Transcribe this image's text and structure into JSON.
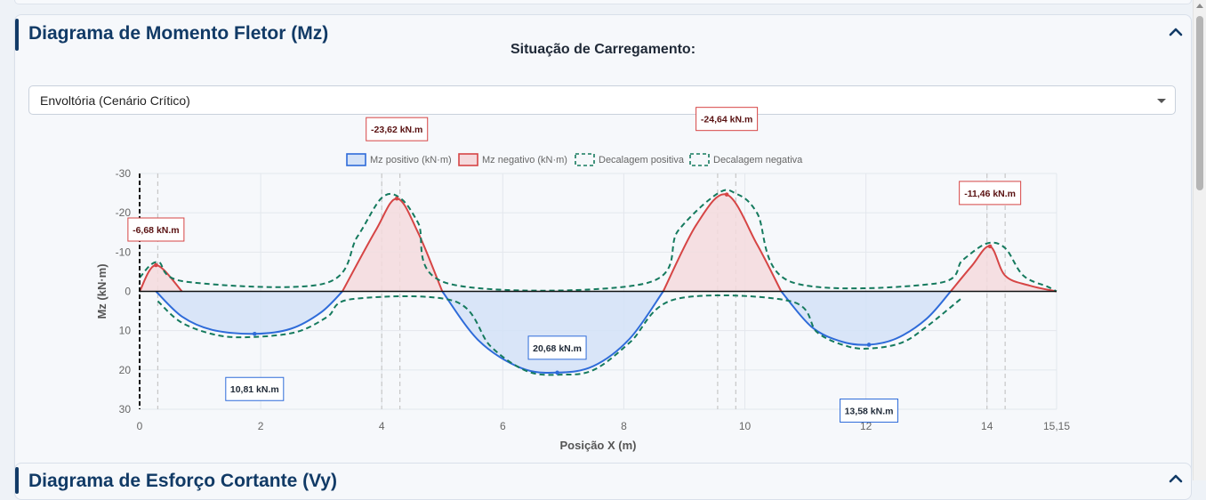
{
  "panel": {
    "title": "Diagrama de Momento Fletor (Mz)",
    "selector_label": "Situação de Carregamento:",
    "selected_option": "Envoltória (Cenário Crítico)"
  },
  "next_panel": {
    "title": "Diagrama de Esforço Cortante (Vy)"
  },
  "colors": {
    "positive_line": "#2e6bd9",
    "positive_fill": "#d4e2f7",
    "negative_line": "#d64545",
    "negative_fill": "#f5dadd",
    "decalagem": "#157a5e",
    "title": "#113a66"
  },
  "chart_data": {
    "type": "area",
    "xlabel": "Posição X (m)",
    "ylabel": "Mz (kN·m)",
    "xlim": [
      0,
      15.15
    ],
    "ylim": [
      -30,
      30
    ],
    "y_inverted": true,
    "x_ticks": [
      "0",
      "2",
      "4",
      "6",
      "8",
      "10",
      "12",
      "14",
      "15,15"
    ],
    "x_tick_values": [
      0,
      2,
      4,
      6,
      8,
      10,
      12,
      14,
      15.15
    ],
    "y_ticks": [
      "-30",
      "-20",
      "-10",
      "0",
      "10",
      "20",
      "30"
    ],
    "y_tick_values": [
      -30,
      -20,
      -10,
      0,
      10,
      20,
      30
    ],
    "legend": [
      "Mz positivo (kN·m)",
      "Mz negativo (kN·m)",
      "Decalagem positiva",
      "Decalagem negativa"
    ],
    "support_lines_x": [
      0.3,
      4.0,
      4.3,
      9.55,
      9.85,
      14.0,
      14.3
    ],
    "series": [
      {
        "name": "Mz positivo (kN·m)",
        "x": [
          0.27,
          0.7,
          1.2,
          1.9,
          2.5,
          3.0,
          3.35
        ],
        "y": [
          0,
          6.4,
          9.8,
          10.81,
          9.5,
          5.3,
          0
        ]
      },
      {
        "name": "Mz negativo (kN·m)",
        "x": [
          0,
          0.27,
          0.7
        ],
        "y": [
          0,
          -6.68,
          0
        ]
      },
      {
        "name": "Mz positivo (kN·m)",
        "x": [
          5.0,
          5.6,
          6.3,
          6.9,
          7.5,
          8.1,
          8.65
        ],
        "y": [
          0,
          12.5,
          19.5,
          20.68,
          19.0,
          12.0,
          0
        ]
      },
      {
        "name": "Mz negativo (kN·m)",
        "x": [
          3.35,
          3.9,
          4.25,
          4.6,
          5.0
        ],
        "y": [
          0,
          -15.5,
          -23.62,
          -15.0,
          0
        ]
      },
      {
        "name": "Mz positivo (kN·m)",
        "x": [
          10.6,
          11.1,
          11.6,
          12.05,
          12.5,
          13.0,
          13.4
        ],
        "y": [
          0,
          9.0,
          12.8,
          13.58,
          12.0,
          7.0,
          0
        ]
      },
      {
        "name": "Mz negativo (kN·m)",
        "x": [
          8.65,
          9.2,
          9.7,
          10.2,
          10.6
        ],
        "y": [
          0,
          -17.0,
          -24.64,
          -12.0,
          0
        ]
      },
      {
        "name": "Mz negativo (kN·m)",
        "x": [
          13.4,
          13.75,
          14.05,
          14.3,
          14.7,
          15.15
        ],
        "y": [
          0,
          -6.5,
          -11.46,
          -4.0,
          -1.5,
          0
        ]
      }
    ],
    "decalagem_positiva": {
      "x": [
        0.3,
        0.7,
        1.3,
        1.9,
        2.6,
        3.1,
        3.5,
        5.2,
        5.8,
        6.4,
        6.95,
        7.5,
        8.1,
        8.85,
        10.75,
        11.2,
        11.7,
        12.1,
        12.6,
        13.0,
        13.6
      ],
      "y": [
        2.5,
        8.0,
        11.2,
        11.6,
        10.3,
        6.5,
        2.0,
        2.5,
        14.0,
        20.3,
        21.2,
        20.0,
        13.0,
        2.0,
        2.5,
        10.5,
        14.0,
        14.5,
        13.0,
        9.0,
        1.5
      ]
    },
    "decalagem_negativa": {
      "x": [
        0,
        0.3,
        0.75,
        3.05,
        3.6,
        4.0,
        4.3,
        4.6,
        5.1,
        8.35,
        8.9,
        9.55,
        9.85,
        10.2,
        10.75,
        13.15,
        13.6,
        14.0,
        14.3,
        14.6,
        15.0,
        15.15
      ],
      "y": [
        -3.5,
        -7.5,
        -2.5,
        -2.0,
        -14.0,
        -23.8,
        -23.8,
        -17.5,
        -2.0,
        -2.0,
        -15.5,
        -24.9,
        -24.9,
        -20.0,
        -2.5,
        -2.0,
        -8.0,
        -12.2,
        -11.0,
        -4.0,
        -1.2,
        0
      ]
    },
    "annotations": [
      {
        "x": 0.27,
        "y": -6.68,
        "text": "-6,68 kN.m",
        "sign": "neg"
      },
      {
        "x": 1.9,
        "y": 10.81,
        "text": "10,81 kN.m",
        "sign": "pos"
      },
      {
        "x": 4.25,
        "y": -23.62,
        "text": "-23,62 kN.m",
        "sign": "neg"
      },
      {
        "x": 6.9,
        "y": 20.68,
        "text": "20,68 kN.m",
        "sign": "pos"
      },
      {
        "x": 9.7,
        "y": -24.64,
        "text": "-24,64 kN.m",
        "sign": "neg"
      },
      {
        "x": 12.05,
        "y": 13.58,
        "text": "13,58 kN.m",
        "sign": "pos"
      },
      {
        "x": 14.05,
        "y": -11.46,
        "text": "-11,46 kN.m",
        "sign": "neg"
      }
    ]
  }
}
